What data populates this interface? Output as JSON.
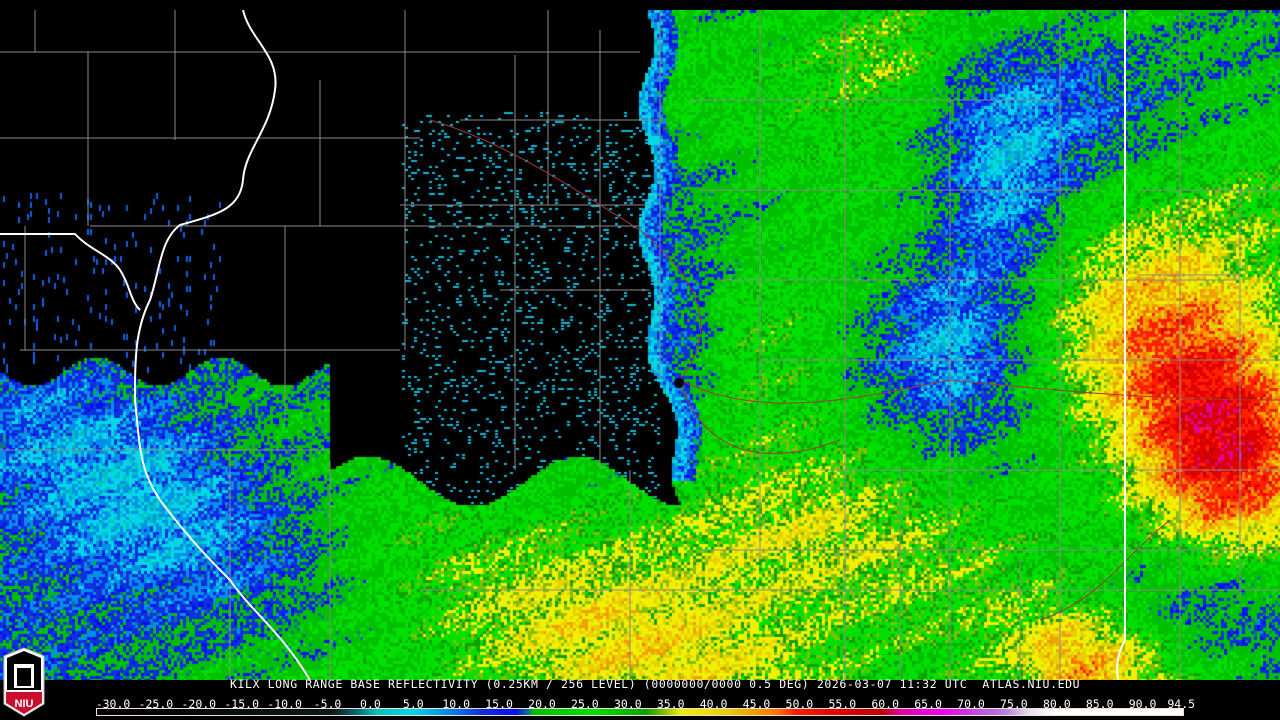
{
  "caption": "KILX LONG RANGE BASE REFLECTIVITY (0.25KM / 256 LEVEL) (0000000/0000 0.5 DEG) 2026-03-07 11:32 UTC  ATLAS.NIU.EDU",
  "logo_text": "NIU",
  "legend": {
    "ticks": [
      "-30.0",
      "-25.0",
      "-20.0",
      "-15.0",
      "-10.0",
      "-5.0",
      "0.0",
      "5.0",
      "10.0",
      "15.0",
      "20.0",
      "25.0",
      "30.0",
      "35.0",
      "40.0",
      "45.0",
      "50.0",
      "55.0",
      "60.0",
      "65.0",
      "70.0",
      "75.0",
      "80.0",
      "85.0",
      "90.0",
      "94.5"
    ],
    "range": [
      -30,
      94.5
    ],
    "color_stops": [
      [
        -30,
        "#000000"
      ],
      [
        -3,
        "#0a1a1a"
      ],
      [
        0,
        "#08707a"
      ],
      [
        2,
        "#00c0c0"
      ],
      [
        6,
        "#00d8e8"
      ],
      [
        10,
        "#0090e8"
      ],
      [
        14,
        "#1030e0"
      ],
      [
        18,
        "#0010f0"
      ],
      [
        19.5,
        "#107090"
      ],
      [
        20,
        "#00c000"
      ],
      [
        27,
        "#00e000"
      ],
      [
        33,
        "#10a000"
      ],
      [
        35,
        "#80c000"
      ],
      [
        37,
        "#f0f000"
      ],
      [
        42,
        "#e8d000"
      ],
      [
        45,
        "#f0a000"
      ],
      [
        48,
        "#ff7000"
      ],
      [
        50,
        "#ff2000"
      ],
      [
        55,
        "#e00000"
      ],
      [
        60,
        "#c00000"
      ],
      [
        62,
        "#e000a0"
      ],
      [
        67,
        "#f000f0"
      ],
      [
        70,
        "#c040e0"
      ],
      [
        74,
        "#b080e0"
      ],
      [
        77,
        "#e8e0f0"
      ],
      [
        80,
        "#ffffff"
      ],
      [
        94.5,
        "#ffffff"
      ]
    ]
  }
}
